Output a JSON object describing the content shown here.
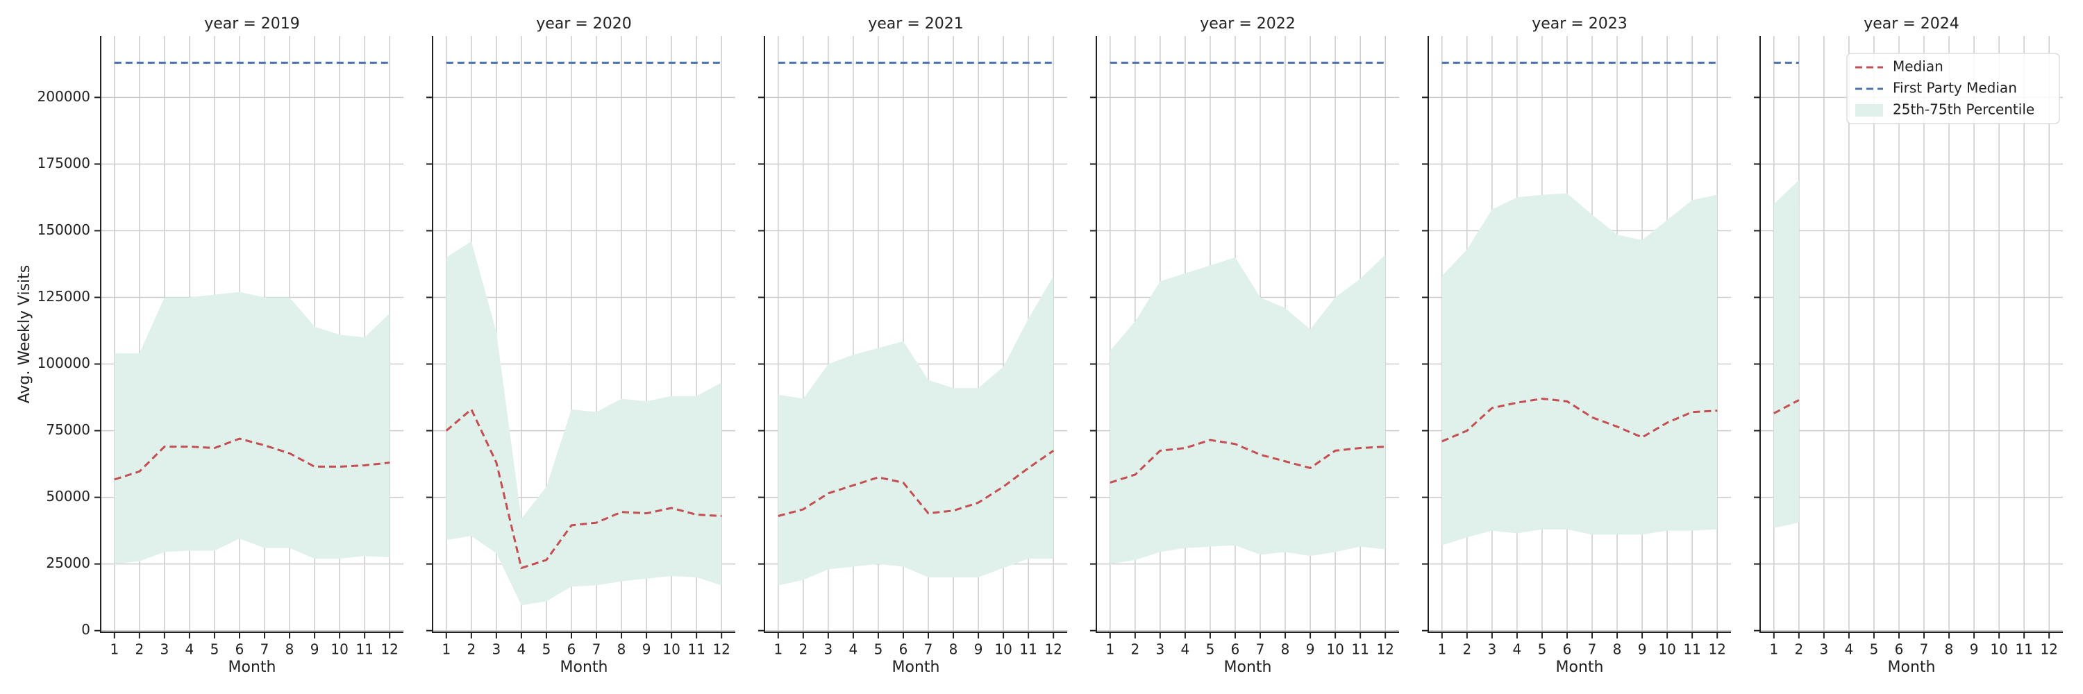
{
  "chart_data": [
    {
      "type": "line",
      "title": "year = 2019",
      "xlabel": "Month",
      "ylabel": "Avg. Weekly Visits",
      "show_ytick_labels": true,
      "x": [
        1,
        2,
        3,
        4,
        5,
        6,
        7,
        8,
        9,
        10,
        11,
        12
      ],
      "xlim": [
        0.45,
        12.55
      ],
      "xticks": [
        1,
        2,
        3,
        4,
        5,
        6,
        7,
        8,
        9,
        10,
        11,
        12
      ],
      "ylim": [
        -600,
        223000
      ],
      "yticks": [
        0,
        25000,
        50000,
        75000,
        100000,
        125000,
        150000,
        175000,
        200000
      ],
      "grid": true,
      "series": [
        {
          "name": "Median",
          "color": "#c44e52",
          "style": "dashed",
          "values": [
            56700,
            59700,
            69000,
            69000,
            68500,
            72000,
            69500,
            66500,
            61500,
            61500,
            62000,
            63000
          ]
        },
        {
          "name": "First Party Median",
          "color": "#4c72b0",
          "style": "dashed",
          "values": [
            213000,
            213000,
            213000,
            213000,
            213000,
            213000,
            213000,
            213000,
            213000,
            213000,
            213000,
            213000
          ]
        },
        {
          "name": "25th-75th Percentile",
          "color": "#dff1ea",
          "style": "band",
          "lower": [
            25000,
            26000,
            29500,
            30000,
            30000,
            34500,
            31000,
            31000,
            27000,
            27000,
            28000,
            27500
          ],
          "upper": [
            104000,
            104000,
            125000,
            125000,
            126000,
            127000,
            125000,
            125000,
            114000,
            111000,
            110000,
            119000
          ]
        }
      ]
    },
    {
      "type": "line",
      "title": "year = 2020",
      "xlabel": "Month",
      "show_ytick_labels": false,
      "x": [
        1,
        2,
        3,
        4,
        5,
        6,
        7,
        8,
        9,
        10,
        11,
        12
      ],
      "xlim": [
        0.45,
        12.55
      ],
      "xticks": [
        1,
        2,
        3,
        4,
        5,
        6,
        7,
        8,
        9,
        10,
        11,
        12
      ],
      "ylim": [
        -600,
        223000
      ],
      "yticks": [
        0,
        25000,
        50000,
        75000,
        100000,
        125000,
        150000,
        175000,
        200000
      ],
      "grid": true,
      "series": [
        {
          "name": "Median",
          "color": "#c44e52",
          "style": "dashed",
          "values": [
            75000,
            83000,
            63000,
            23500,
            26500,
            39500,
            40500,
            44500,
            44000,
            46000,
            43500,
            43000
          ]
        },
        {
          "name": "First Party Median",
          "color": "#4c72b0",
          "style": "dashed",
          "values": [
            213000,
            213000,
            213000,
            213000,
            213000,
            213000,
            213000,
            213000,
            213000,
            213000,
            213000,
            213000
          ]
        },
        {
          "name": "25th-75th Percentile",
          "color": "#dff1ea",
          "style": "band",
          "lower": [
            34000,
            35500,
            29000,
            9500,
            11000,
            16500,
            17000,
            18500,
            19500,
            20500,
            20000,
            17000
          ],
          "upper": [
            140000,
            146000,
            112000,
            42000,
            54000,
            83000,
            82000,
            87000,
            86000,
            88000,
            88000,
            93000
          ]
        }
      ]
    },
    {
      "type": "line",
      "title": "year = 2021",
      "xlabel": "Month",
      "show_ytick_labels": false,
      "x": [
        1,
        2,
        3,
        4,
        5,
        6,
        7,
        8,
        9,
        10,
        11,
        12
      ],
      "xlim": [
        0.45,
        12.55
      ],
      "xticks": [
        1,
        2,
        3,
        4,
        5,
        6,
        7,
        8,
        9,
        10,
        11,
        12
      ],
      "ylim": [
        -600,
        223000
      ],
      "yticks": [
        0,
        25000,
        50000,
        75000,
        100000,
        125000,
        150000,
        175000,
        200000
      ],
      "grid": true,
      "series": [
        {
          "name": "Median",
          "color": "#c44e52",
          "style": "dashed",
          "values": [
            43000,
            45500,
            51500,
            54500,
            57500,
            55500,
            44000,
            45000,
            48000,
            54000,
            61000,
            67500
          ]
        },
        {
          "name": "First Party Median",
          "color": "#4c72b0",
          "style": "dashed",
          "values": [
            213000,
            213000,
            213000,
            213000,
            213000,
            213000,
            213000,
            213000,
            213000,
            213000,
            213000,
            213000
          ]
        },
        {
          "name": "25th-75th Percentile",
          "color": "#dff1ea",
          "style": "band",
          "lower": [
            17000,
            19000,
            23000,
            24000,
            25000,
            24000,
            20000,
            20000,
            20000,
            23500,
            27000,
            27000
          ],
          "upper": [
            88500,
            87000,
            100000,
            103500,
            106000,
            108500,
            94000,
            91000,
            91000,
            99000,
            117000,
            133000
          ]
        }
      ]
    },
    {
      "type": "line",
      "title": "year = 2022",
      "xlabel": "Month",
      "show_ytick_labels": false,
      "x": [
        1,
        2,
        3,
        4,
        5,
        6,
        7,
        8,
        9,
        10,
        11,
        12
      ],
      "xlim": [
        0.45,
        12.55
      ],
      "xticks": [
        1,
        2,
        3,
        4,
        5,
        6,
        7,
        8,
        9,
        10,
        11,
        12
      ],
      "ylim": [
        -600,
        223000
      ],
      "yticks": [
        0,
        25000,
        50000,
        75000,
        100000,
        125000,
        150000,
        175000,
        200000
      ],
      "grid": true,
      "series": [
        {
          "name": "Median",
          "color": "#c44e52",
          "style": "dashed",
          "values": [
            55500,
            58500,
            67500,
            68500,
            71500,
            70000,
            66000,
            63500,
            61000,
            67500,
            68500,
            69000
          ]
        },
        {
          "name": "First Party Median",
          "color": "#4c72b0",
          "style": "dashed",
          "values": [
            213000,
            213000,
            213000,
            213000,
            213000,
            213000,
            213000,
            213000,
            213000,
            213000,
            213000,
            213000
          ]
        },
        {
          "name": "25th-75th Percentile",
          "color": "#dff1ea",
          "style": "band",
          "lower": [
            25000,
            26500,
            29500,
            31000,
            31500,
            32000,
            28500,
            29500,
            28000,
            29500,
            31500,
            30500
          ],
          "upper": [
            105000,
            116000,
            131000,
            134000,
            137000,
            140000,
            125000,
            121000,
            113000,
            125000,
            132000,
            141000
          ]
        }
      ]
    },
    {
      "type": "line",
      "title": "year = 2023",
      "xlabel": "Month",
      "show_ytick_labels": false,
      "x": [
        1,
        2,
        3,
        4,
        5,
        6,
        7,
        8,
        9,
        10,
        11,
        12
      ],
      "xlim": [
        0.45,
        12.55
      ],
      "xticks": [
        1,
        2,
        3,
        4,
        5,
        6,
        7,
        8,
        9,
        10,
        11,
        12
      ],
      "ylim": [
        -600,
        223000
      ],
      "yticks": [
        0,
        25000,
        50000,
        75000,
        100000,
        125000,
        150000,
        175000,
        200000
      ],
      "grid": true,
      "series": [
        {
          "name": "Median",
          "color": "#c44e52",
          "style": "dashed",
          "values": [
            71000,
            75000,
            83500,
            85500,
            87000,
            86000,
            80000,
            76500,
            72500,
            78000,
            82000,
            82500
          ]
        },
        {
          "name": "First Party Median",
          "color": "#4c72b0",
          "style": "dashed",
          "values": [
            213000,
            213000,
            213000,
            213000,
            213000,
            213000,
            213000,
            213000,
            213000,
            213000,
            213000,
            213000
          ]
        },
        {
          "name": "25th-75th Percentile",
          "color": "#dff1ea",
          "style": "band",
          "lower": [
            32000,
            35000,
            37500,
            36500,
            38000,
            38000,
            36000,
            36000,
            36000,
            37500,
            37500,
            38000
          ],
          "upper": [
            133000,
            143000,
            158000,
            162500,
            163500,
            164000,
            156000,
            148500,
            146500,
            154000,
            161500,
            163500
          ]
        }
      ]
    },
    {
      "type": "line",
      "title": "year = 2024",
      "xlabel": "Month",
      "show_ytick_labels": false,
      "legend": "upper right",
      "x": [
        1,
        2,
        3,
        4,
        5,
        6,
        7,
        8,
        9,
        10,
        11,
        12
      ],
      "xlim": [
        0.45,
        12.55
      ],
      "xticks": [
        1,
        2,
        3,
        4,
        5,
        6,
        7,
        8,
        9,
        10,
        11,
        12
      ],
      "ylim": [
        -600,
        223000
      ],
      "yticks": [
        0,
        25000,
        50000,
        75000,
        100000,
        125000,
        150000,
        175000,
        200000
      ],
      "grid": true,
      "series": [
        {
          "name": "Median",
          "color": "#c44e52",
          "style": "dashed",
          "values": [
            81500,
            86500,
            null,
            null,
            null,
            null,
            null,
            null,
            null,
            null,
            null,
            null
          ]
        },
        {
          "name": "First Party Median",
          "color": "#4c72b0",
          "style": "dashed",
          "values": [
            213000,
            213000,
            null,
            null,
            null,
            null,
            null,
            null,
            null,
            null,
            null,
            null
          ]
        },
        {
          "name": "25th-75th Percentile",
          "color": "#dff1ea",
          "style": "band",
          "lower": [
            38500,
            40500,
            null,
            null,
            null,
            null,
            null,
            null,
            null,
            null,
            null,
            null
          ],
          "upper": [
            160000,
            169000,
            null,
            null,
            null,
            null,
            null,
            null,
            null,
            null,
            null,
            null
          ]
        }
      ]
    }
  ]
}
